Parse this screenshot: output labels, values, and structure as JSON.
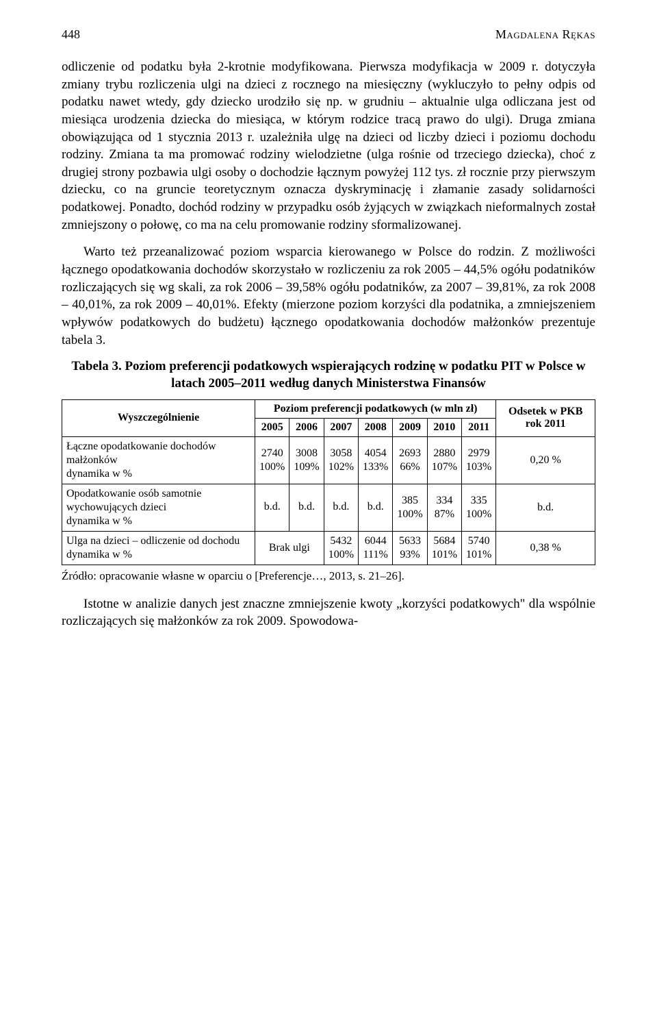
{
  "header": {
    "page_number": "448",
    "author": "Magdalena Rękas"
  },
  "paragraphs": {
    "p1": "odliczenie od podatku była 2-krotnie modyfikowana. Pierwsza modyfikacja w 2009 r. dotyczyła zmiany trybu rozliczenia ulgi na dzieci z rocznego na miesięczny (wykluczyło to pełny odpis od podatku nawet wtedy, gdy dziecko urodziło się np. w grudniu – aktualnie ulga odliczana jest od miesiąca urodzenia dziecka do miesiąca, w którym rodzice tracą prawo do ulgi). Druga zmiana obowiązująca od 1 stycznia 2013 r. uzależniła ulgę na dzieci od liczby dzieci i poziomu dochodu rodziny. Zmiana ta ma promować rodziny wielodzietne (ulga rośnie od trzeciego dziecka), choć z drugiej strony pozbawia ulgi osoby o dochodzie łącznym powyżej 112 tys. zł rocznie przy pierwszym dziecku, co na gruncie teoretycznym oznacza dyskryminację i złamanie zasady solidarności podatkowej. Ponadto, dochód rodziny w przypadku osób żyjących w związkach nieformalnych został zmniejszony o połowę, co ma na celu promowanie rodziny sformalizowanej.",
    "p2": "Warto też przeanalizować poziom wsparcia kierowanego w Polsce do rodzin. Z możliwości łącznego opodatkowania dochodów skorzystało w rozliczeniu za rok 2005 – 44,5% ogółu podatników rozliczających się wg skali, za rok 2006 – 39,58% ogółu podatników, za 2007 – 39,81%, za rok 2008 – 40,01%, za rok 2009 – 40,01%. Efekty (mierzone poziom korzyści dla podatnika, a zmniejszeniem wpływów podatkowych do budżetu) łącznego opodatkowania dochodów małżonków prezentuje tabela 3.",
    "p3": "Istotne w analizie danych jest znaczne zmniejszenie kwoty „korzyści podatkowych\" dla wspólnie rozliczających się małżonków za rok 2009. Spowodowa-"
  },
  "table": {
    "title": "Tabela 3. Poziom preferencji podatkowych wspierających rodzinę w podatku PIT w Polsce w latach 2005–2011 według danych Ministerstwa Finansów",
    "col_rowhead": "Wyszczególnienie",
    "group_header": "Poziom preferencji podatkowych (w mln zł)",
    "years": [
      "2005",
      "2006",
      "2007",
      "2008",
      "2009",
      "2010",
      "2011"
    ],
    "last_col_header": "Odsetek w PKB rok 2011",
    "rows": [
      {
        "label": "Łączne opodatkowanie dochodów małżonków\ndynamika w %",
        "values": [
          "2740",
          "3008",
          "3058",
          "4054",
          "2693",
          "2880",
          "2979"
        ],
        "dyn": [
          "100%",
          "109%",
          "102%",
          "133%",
          "66%",
          "107%",
          "103%"
        ],
        "last": "0,20 %"
      },
      {
        "label": "Opodatkowanie osób samotnie wychowujących dzieci\ndynamika w %",
        "values": [
          "b.d.",
          "b.d.",
          "b.d.",
          "b.d.",
          "385",
          "334",
          "335"
        ],
        "dyn": [
          "",
          "",
          "",
          "",
          "100%",
          "87%",
          "100%"
        ],
        "last": "b.d."
      },
      {
        "label": "Ulga na dzieci – odliczenie od dochodu\ndynamika w %",
        "brak_span_text": "Brak ulgi",
        "values": [
          "",
          "",
          "5432",
          "6044",
          "5633",
          "5684",
          "5740"
        ],
        "dyn": [
          "",
          "",
          "100%",
          "111%",
          "93%",
          "101%",
          "101%"
        ],
        "last": "0,38 %"
      }
    ]
  },
  "source": "Źródło: opracowanie własne w oparciu o [Preferencje…, 2013, s. 21–26]."
}
